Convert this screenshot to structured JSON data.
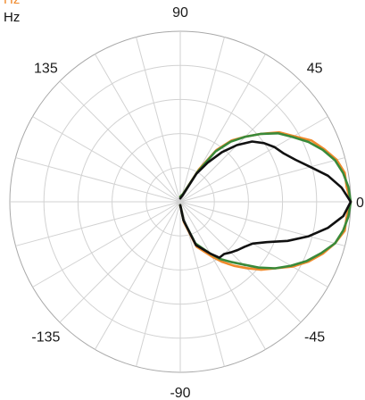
{
  "chart_data": {
    "type": "polar-line",
    "angle_unit": "degrees",
    "angular_grid_step": 15,
    "radial_grid_rings": 5,
    "rmax": 1.0,
    "grid": true,
    "angle_tick_labels": [
      {
        "angle": 90,
        "text": "90"
      },
      {
        "angle": 45,
        "text": "45"
      },
      {
        "angle": 135,
        "text": "135"
      },
      {
        "angle": 0,
        "text": "0"
      },
      {
        "angle": -45,
        "text": "-45"
      },
      {
        "angle": -135,
        "text": "-135"
      },
      {
        "angle": -90,
        "text": "-90"
      }
    ],
    "legend": [
      {
        "text": "Hz",
        "color": "#f08a2c"
      },
      {
        "text": "Hz",
        "color": "#111111"
      }
    ],
    "series": [
      {
        "color": "#f08a2c",
        "points": [
          [
            90,
            0.03
          ],
          [
            70,
            0.05
          ],
          [
            60,
            0.22
          ],
          [
            55,
            0.37
          ],
          [
            50,
            0.47
          ],
          [
            45,
            0.54
          ],
          [
            40,
            0.62
          ],
          [
            35,
            0.71
          ],
          [
            30,
            0.77
          ],
          [
            25,
            0.85
          ],
          [
            20,
            0.9
          ],
          [
            15,
            0.95
          ],
          [
            10,
            0.98
          ],
          [
            5,
            0.98
          ],
          [
            0,
            1.0
          ],
          [
            -5,
            0.98
          ],
          [
            -10,
            0.98
          ],
          [
            -15,
            0.94
          ],
          [
            -20,
            0.89
          ],
          [
            -25,
            0.83
          ],
          [
            -30,
            0.76
          ],
          [
            -35,
            0.68
          ],
          [
            -40,
            0.62
          ],
          [
            -45,
            0.55
          ],
          [
            -50,
            0.49
          ],
          [
            -55,
            0.43
          ],
          [
            -60,
            0.37
          ],
          [
            -70,
            0.28
          ],
          [
            -80,
            0.12
          ],
          [
            -90,
            0.02
          ]
        ]
      },
      {
        "color": "#3a8a3a",
        "points": [
          [
            90,
            0.03
          ],
          [
            70,
            0.05
          ],
          [
            60,
            0.2
          ],
          [
            55,
            0.36
          ],
          [
            50,
            0.46
          ],
          [
            45,
            0.54
          ],
          [
            40,
            0.62
          ],
          [
            35,
            0.7
          ],
          [
            30,
            0.76
          ],
          [
            25,
            0.83
          ],
          [
            20,
            0.89
          ],
          [
            15,
            0.94
          ],
          [
            10,
            0.97
          ],
          [
            5,
            0.99
          ],
          [
            0,
            1.0
          ],
          [
            -5,
            0.99
          ],
          [
            -10,
            0.97
          ],
          [
            -15,
            0.94
          ],
          [
            -20,
            0.88
          ],
          [
            -25,
            0.82
          ],
          [
            -30,
            0.75
          ],
          [
            -35,
            0.68
          ],
          [
            -40,
            0.6
          ],
          [
            -45,
            0.52
          ],
          [
            -50,
            0.46
          ],
          [
            -55,
            0.41
          ],
          [
            -60,
            0.35
          ],
          [
            -70,
            0.26
          ],
          [
            -80,
            0.11
          ],
          [
            -90,
            0.02
          ]
        ]
      },
      {
        "color": "#111111",
        "points": [
          [
            90,
            0.02
          ],
          [
            70,
            0.04
          ],
          [
            60,
            0.19
          ],
          [
            55,
            0.28
          ],
          [
            50,
            0.38
          ],
          [
            45,
            0.47
          ],
          [
            40,
            0.55
          ],
          [
            35,
            0.6
          ],
          [
            30,
            0.64
          ],
          [
            25,
            0.67
          ],
          [
            20,
            0.72
          ],
          [
            15,
            0.79
          ],
          [
            10,
            0.88
          ],
          [
            5,
            0.95
          ],
          [
            0,
            1.0
          ],
          [
            -5,
            0.96
          ],
          [
            -10,
            0.88
          ],
          [
            -15,
            0.78
          ],
          [
            -20,
            0.67
          ],
          [
            -25,
            0.56
          ],
          [
            -30,
            0.49
          ],
          [
            -35,
            0.46
          ],
          [
            -40,
            0.44
          ],
          [
            -45,
            0.42
          ],
          [
            -50,
            0.4
          ],
          [
            -55,
            0.4
          ],
          [
            -60,
            0.35
          ],
          [
            -70,
            0.27
          ],
          [
            -80,
            0.11
          ],
          [
            -90,
            0.02
          ]
        ]
      }
    ]
  }
}
